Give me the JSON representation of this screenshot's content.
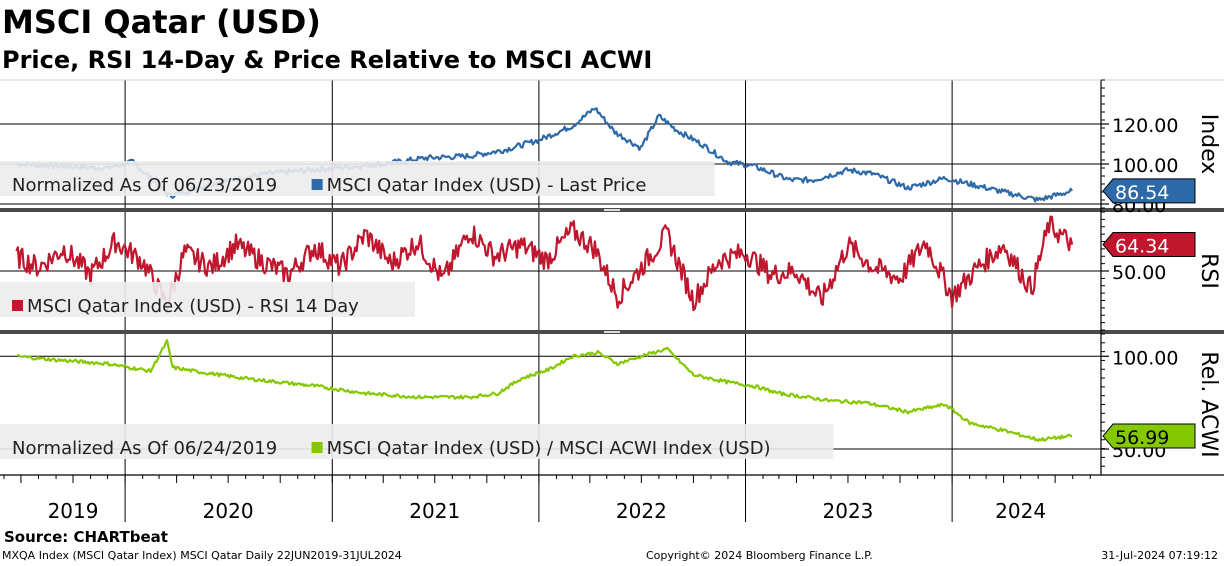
{
  "header": {
    "title": "MSCI Qatar (USD)",
    "subtitle": "Price, RSI 14-Day & Price Relative to MSCI ACWI"
  },
  "footer": {
    "source": "Source: CHARTbeat",
    "ticker_info": "MXQA Index (MSCI Qatar Index) MSCI Qatar  Daily 22JUN2019-31JUL2024",
    "copyright": "Copyright© 2024 Bloomberg Finance L.P.",
    "timestamp": "31-Jul-2024 07:19:12"
  },
  "colors": {
    "price": "#2e6aa8",
    "rsi": "#c0162e",
    "relative": "#86c800",
    "grid": "#000000",
    "legend_bg": "#ececec"
  },
  "chart_data": [
    {
      "type": "line",
      "panel": "price",
      "ylabel": "Index",
      "ylim": [
        78,
        142
      ],
      "yticks": [
        80,
        100,
        120
      ],
      "tick_labels": [
        "80.00",
        "100.00",
        "120.00"
      ],
      "legend": {
        "note": "Normalized As Of 06/23/2019",
        "series_label": "MSCI Qatar Index (USD) - Last Price"
      },
      "last_value_label": "86.54",
      "series": [
        {
          "name": "MSCI Qatar Index (USD) - Last Price",
          "x": [
            "2019-06-23",
            "2019-09-01",
            "2019-12-01",
            "2020-01-15",
            "2020-03-20",
            "2020-06-01",
            "2020-09-01",
            "2021-01-01",
            "2021-04-01",
            "2021-06-15",
            "2021-09-01",
            "2021-11-01",
            "2022-01-01",
            "2022-03-01",
            "2022-04-10",
            "2022-05-15",
            "2022-06-30",
            "2022-08-01",
            "2022-09-01",
            "2022-10-15",
            "2022-12-01",
            "2023-01-15",
            "2023-03-20",
            "2023-05-01",
            "2023-07-01",
            "2023-08-15",
            "2023-10-15",
            "2023-12-20",
            "2024-02-01",
            "2024-04-01",
            "2024-06-01",
            "2024-07-31"
          ],
          "values": [
            100,
            99,
            98,
            101,
            84,
            90,
            95,
            98,
            100,
            103,
            104,
            107,
            112,
            119,
            128,
            116,
            108,
            124,
            117,
            110,
            101,
            99,
            92,
            92,
            97,
            95,
            88,
            93,
            90,
            86,
            82,
            86.54
          ]
        }
      ]
    },
    {
      "type": "line",
      "panel": "rsi",
      "ylabel": "RSI",
      "ylim": [
        18,
        82
      ],
      "yticks": [
        50
      ],
      "tick_labels": [
        "50.00"
      ],
      "legend": {
        "note": "",
        "series_label": "MSCI Qatar Index (USD) - RSI 14 Day"
      },
      "last_value_label": "64.34",
      "series": [
        {
          "name": "MSCI Qatar Index (USD) - RSI 14 Day",
          "x": [
            "2019-06-23",
            "2019-08-01",
            "2019-09-15",
            "2019-11-01",
            "2019-12-15",
            "2020-02-01",
            "2020-03-15",
            "2020-04-15",
            "2020-06-01",
            "2020-07-15",
            "2020-09-01",
            "2020-10-15",
            "2020-12-01",
            "2021-01-15",
            "2021-03-01",
            "2021-04-15",
            "2021-06-01",
            "2021-07-15",
            "2021-09-01",
            "2021-10-15",
            "2021-12-01",
            "2022-01-15",
            "2022-03-01",
            "2022-04-10",
            "2022-05-20",
            "2022-07-01",
            "2022-08-15",
            "2022-10-01",
            "2022-11-15",
            "2023-01-01",
            "2023-02-15",
            "2023-04-01",
            "2023-05-15",
            "2023-07-01",
            "2023-08-15",
            "2023-10-01",
            "2023-11-15",
            "2024-01-01",
            "2024-02-15",
            "2024-04-01",
            "2024-05-20",
            "2024-06-20",
            "2024-07-31"
          ],
          "values": [
            58,
            52,
            62,
            48,
            66,
            55,
            32,
            60,
            52,
            64,
            55,
            48,
            63,
            52,
            70,
            54,
            66,
            45,
            72,
            58,
            64,
            56,
            72,
            62,
            36,
            52,
            70,
            34,
            56,
            60,
            48,
            50,
            34,
            64,
            52,
            46,
            66,
            36,
            52,
            64,
            40,
            75,
            64.34
          ]
        }
      ]
    },
    {
      "type": "line",
      "panel": "relative",
      "ylabel": "Rel. ACWI",
      "ylim": [
        36,
        112
      ],
      "yticks": [
        50,
        100
      ],
      "tick_labels": [
        "50.00",
        "100.00"
      ],
      "legend": {
        "note": "Normalized As Of 06/24/2019",
        "series_label": "MSCI Qatar Index (USD) / MSCI ACWI Index (USD)"
      },
      "last_value_label": "56.99",
      "series": [
        {
          "name": "MSCI Qatar Index (USD) / MSCI ACWI Index (USD)",
          "x": [
            "2019-06-24",
            "2019-09-01",
            "2019-12-01",
            "2020-02-15",
            "2020-03-15",
            "2020-03-25",
            "2020-05-01",
            "2020-08-01",
            "2020-12-01",
            "2021-03-01",
            "2021-06-01",
            "2021-09-01",
            "2021-10-20",
            "2021-12-01",
            "2022-01-20",
            "2022-03-01",
            "2022-04-15",
            "2022-05-20",
            "2022-07-01",
            "2022-08-15",
            "2022-10-01",
            "2022-12-01",
            "2023-01-15",
            "2023-03-01",
            "2023-06-01",
            "2023-08-01",
            "2023-10-15",
            "2023-12-20",
            "2024-02-01",
            "2024-04-01",
            "2024-06-01",
            "2024-07-31"
          ],
          "values": [
            100,
            98,
            96,
            92,
            108,
            94,
            92,
            88,
            84,
            80,
            78,
            78,
            80,
            88,
            93,
            100,
            102,
            96,
            100,
            104,
            90,
            86,
            84,
            80,
            76,
            75,
            70,
            74,
            64,
            60,
            55,
            56.99
          ]
        }
      ]
    }
  ],
  "x_axis": {
    "range": [
      "2019-05-25",
      "2024-09-20"
    ],
    "year_labels": [
      "2019",
      "2020",
      "2021",
      "2022",
      "2023",
      "2024"
    ],
    "year_centers": [
      "2019-10-01",
      "2020-07-01",
      "2021-07-01",
      "2022-07-01",
      "2023-07-01",
      "2024-05-01"
    ],
    "year_boundaries": [
      "2020-01-01",
      "2021-01-01",
      "2022-01-01",
      "2023-01-01",
      "2024-01-01"
    ]
  }
}
